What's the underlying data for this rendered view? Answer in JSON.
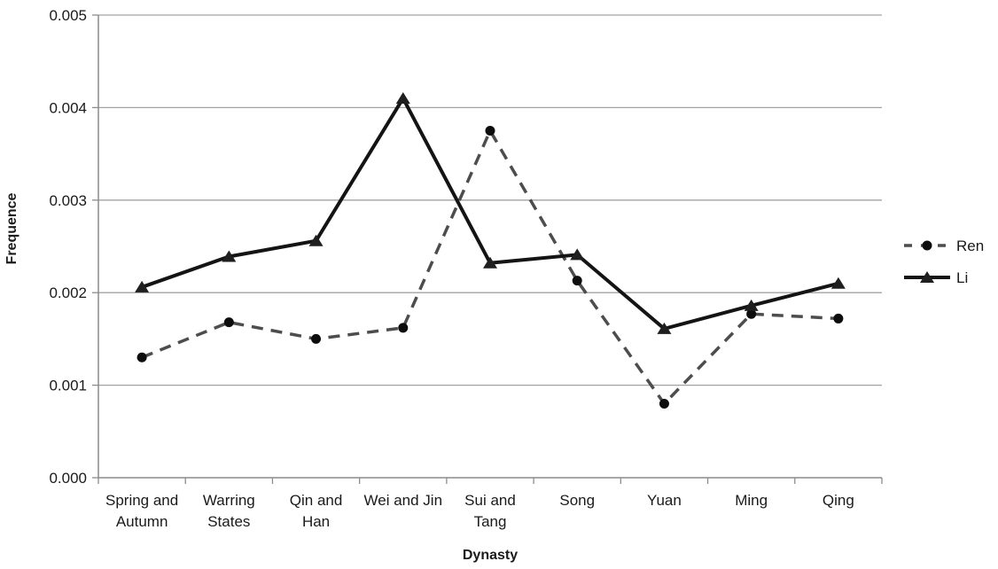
{
  "chart_data": {
    "type": "line",
    "title": "",
    "xlabel": "Dynasty",
    "ylabel": "Frequence",
    "categories": [
      "Spring and Autumn",
      "Warring States",
      "Qin and Han",
      "Wei and Jin",
      "Sui and Tang",
      "Song",
      "Yuan",
      "Ming",
      "Qing"
    ],
    "category_label_lines": [
      [
        "Spring and",
        "Autumn"
      ],
      [
        "Warring",
        "States"
      ],
      [
        "Qin and",
        "Han"
      ],
      [
        "Wei and Jin"
      ],
      [
        "Sui and",
        "Tang"
      ],
      [
        "Song"
      ],
      [
        "Yuan"
      ],
      [
        "Ming"
      ],
      [
        "Qing"
      ]
    ],
    "series": [
      {
        "name": "Ren",
        "line_style": "dashed",
        "marker": "circle",
        "line_color": "#4d4d4d",
        "marker_color": "#0d0d0d",
        "values": [
          0.0013,
          0.00168,
          0.0015,
          0.00162,
          0.00375,
          0.00213,
          0.0008,
          0.00177,
          0.00172
        ]
      },
      {
        "name": "Li",
        "line_style": "solid",
        "marker": "triangle",
        "line_color": "#141414",
        "marker_color": "#1f1f1f",
        "values": [
          0.00206,
          0.00239,
          0.00256,
          0.0041,
          0.00232,
          0.00241,
          0.00161,
          0.00186,
          0.0021
        ]
      }
    ],
    "ylim": [
      0,
      0.005
    ],
    "ytick_step": 0.001,
    "ytick_labels": [
      "0.000",
      "0.001",
      "0.002",
      "0.003",
      "0.004",
      "0.005"
    ],
    "grid": "horizontal",
    "legend_position": "right",
    "colors": {
      "gridline": "#a3a3a3",
      "axis": "#8c8c8c",
      "text": "#1a1a1a",
      "background": "#ffffff"
    }
  }
}
